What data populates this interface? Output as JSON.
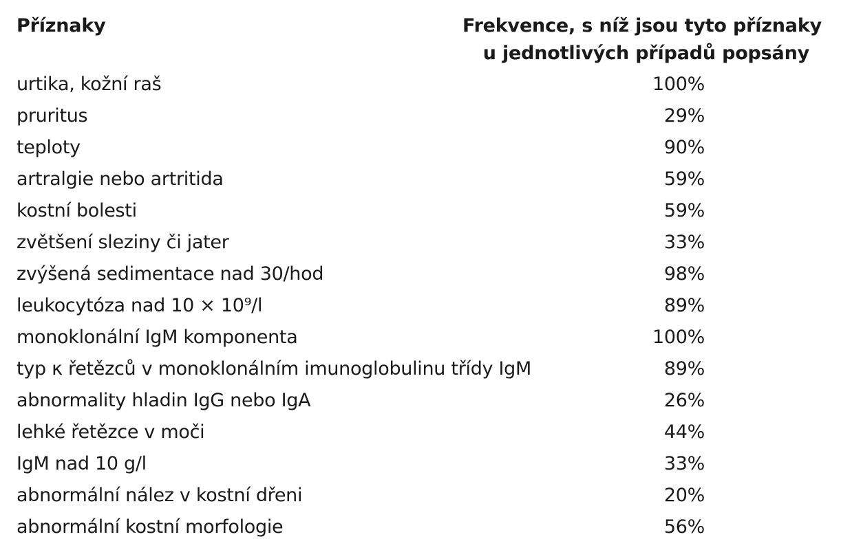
{
  "table": {
    "header": {
      "symptoms": "Příznaky",
      "frequency_line1": "Frekvence, s níž jsou tyto příznaky",
      "frequency_line2": "u jednotlivých případů popsány"
    },
    "rows": [
      {
        "label": "urtika, kožní raš",
        "value": "100%"
      },
      {
        "label": "pruritus",
        "value": "29%"
      },
      {
        "label": "teploty",
        "value": "90%"
      },
      {
        "label": "artralgie nebo artritida",
        "value": "59%"
      },
      {
        "label": "kostní bolesti",
        "value": "59%"
      },
      {
        "label": "zvětšení sleziny či jater",
        "value": "33%"
      },
      {
        "label": "zvýšená sedimentace nad 30/hod",
        "value": "98%"
      },
      {
        "label": "leukocytóza nad 10 × 10⁹/l",
        "value": "89%"
      },
      {
        "label": "monoklonální IgM komponenta",
        "value": "100%"
      },
      {
        "label": "typ κ řetězců v monoklonálním imunoglobulinu třídy IgM",
        "value": "89%"
      },
      {
        "label": "abnormality hladin IgG nebo IgA",
        "value": "26%"
      },
      {
        "label": "lehké řetězce v moči",
        "value": "44%"
      },
      {
        "label": "IgM nad 10 g/l",
        "value": "33%"
      },
      {
        "label": "abnormální nález v kostní dřeni",
        "value": "20%"
      },
      {
        "label": "abnormální kostní morfologie",
        "value": "56%"
      }
    ]
  }
}
